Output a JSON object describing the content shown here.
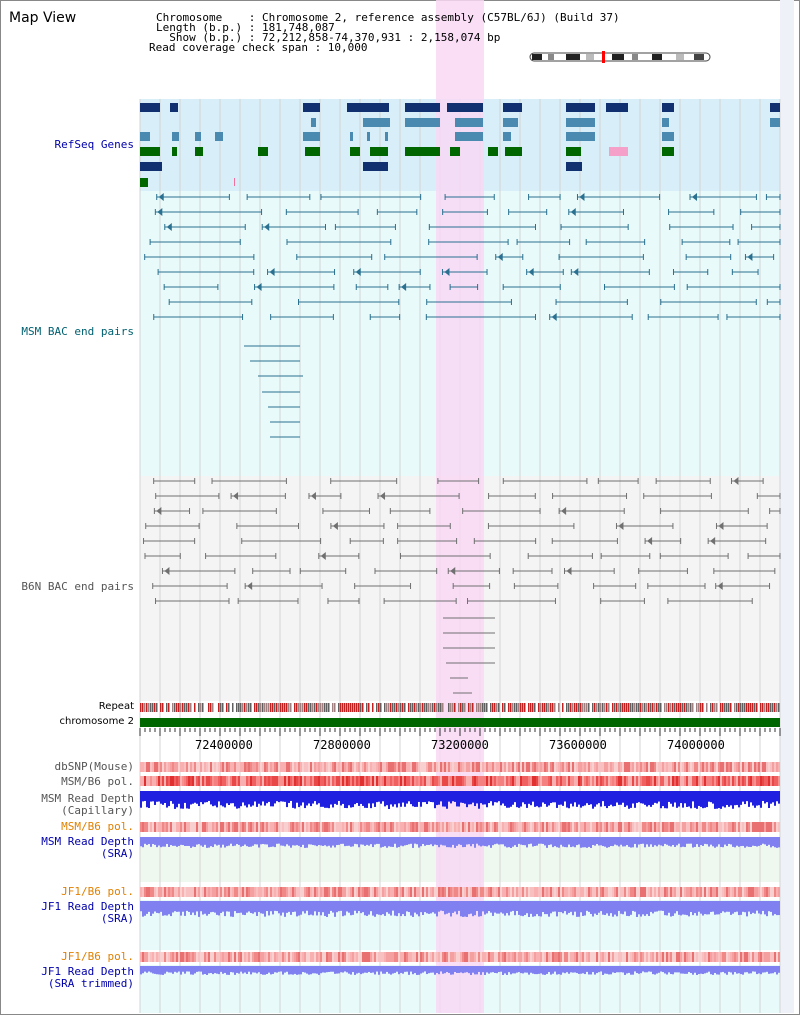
{
  "header": {
    "view_title": "Map View",
    "lines": [
      "Chromosome    : Chromosome 2, reference assembly (C57BL/6J) (Build 37)",
      "Length (b.p.) : 181,748,087",
      "  Show (b.p.) : 72,212,858-74,370,931 : 2,158,074 bp",
      "Read coverage check span : 10,000"
    ]
  },
  "tracks": {
    "refseq": "RefSeq Genes",
    "msm_bac": "MSM BAC end pairs",
    "b6n_bac": "B6N BAC end pairs",
    "repeat": "Repeat",
    "chromosome": "chromosome 2",
    "dbsnp": "dbSNP(Mouse)",
    "msm_b6_pol_1": "MSM/B6 pol.",
    "msm_read_depth_cap": "MSM Read Depth\n(Capillary)",
    "msm_b6_pol_2": "MSM/B6 pol.",
    "msm_read_depth_sra": "MSM Read Depth\n(SRA)",
    "jf1_b6_pol_1": "JF1/B6 pol.",
    "jf1_read_depth_sra": "JF1 Read Depth\n(SRA)",
    "jf1_b6_pol_2": "JF1/B6 pol.",
    "jf1_read_depth_trim": "JF1 Read Depth\n(SRA trimmed)"
  },
  "axis": {
    "ticks": [
      "72400000",
      "72800000",
      "73200000",
      "73600000",
      "74000000"
    ]
  },
  "colors": {
    "highlight": "#f8d8f4",
    "refseq_bg": "#d8eef8",
    "msm_bac_bg": "#e8fafa",
    "gene_navy": "#103070",
    "gene_steel": "#4a8ab0",
    "gene_green": "#006600",
    "chromosome_bar": "#006600",
    "msm_bac_line": "#2a7090",
    "b6n_bac_line": "#707070",
    "capillary_depth": "#2020e0",
    "sra_depth": "#8080f0"
  }
}
